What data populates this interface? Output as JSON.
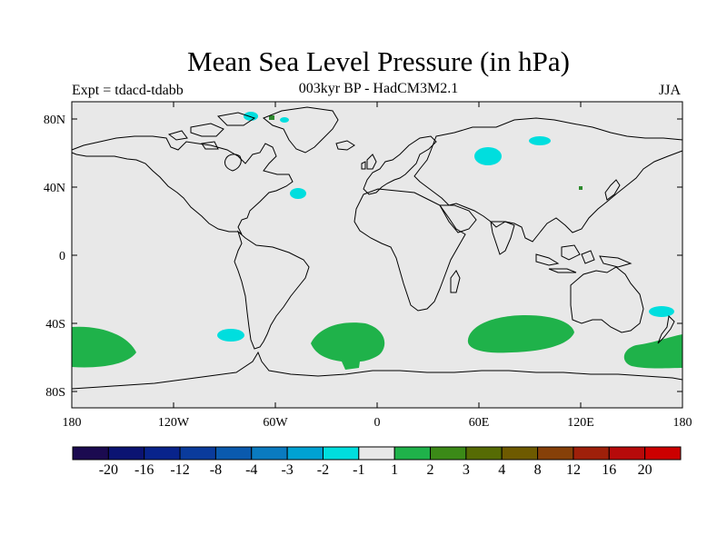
{
  "header": {
    "title": "Mean Sea Level Pressure (in hPa)",
    "subtitle": "003kyr BP - HadCM3M2.1",
    "left_label": "Expt = tdacd-tdabb",
    "right_label": "JJA"
  },
  "map": {
    "lat_ticks": [
      "80N",
      "40N",
      "0",
      "40S",
      "80S"
    ],
    "lon_ticks": [
      "180",
      "120W",
      "60W",
      "0",
      "60E",
      "120E",
      "180"
    ],
    "background_color": "#e8e8e8",
    "coast_color": "#000000"
  },
  "colorbar": {
    "labels": [
      "-20",
      "-16",
      "-12",
      "-8",
      "-4",
      "-3",
      "-2",
      "-1",
      "1",
      "2",
      "3",
      "4",
      "8",
      "12",
      "16",
      "20"
    ],
    "colors": [
      "#1b0a50",
      "#0b1372",
      "#08238b",
      "#0a3b9c",
      "#0a5aae",
      "#0a7bc0",
      "#00a2d3",
      "#00dede",
      "#e8e8e8",
      "#1fb24a",
      "#3b8a17",
      "#566b04",
      "#6e5a00",
      "#864008",
      "#9f200a",
      "#b70a0a",
      "#cc0000"
    ]
  },
  "chart_data": {
    "type": "map",
    "variable": "Mean Sea Level Pressure anomaly (in hPa)",
    "season": "JJA",
    "lon_range": [
      -180,
      180
    ],
    "lat_range": [
      -90,
      90
    ],
    "anomaly_regions": [
      {
        "sign": "positive",
        "range": "1 to 2",
        "region": "South Pacific (SW of New Zealand)",
        "lon": -155,
        "lat": -52
      },
      {
        "sign": "positive",
        "range": "1 to 2",
        "region": "South Atlantic",
        "lon": -25,
        "lat": -47
      },
      {
        "sign": "positive",
        "range": "1 to 2",
        "region": "Southern Indian Ocean",
        "lon": 75,
        "lat": -47
      },
      {
        "sign": "positive",
        "range": "1 to 2",
        "region": "Southern Ocean south of Australia / New Zealand",
        "lon": 160,
        "lat": -55
      },
      {
        "sign": "negative",
        "range": "-2 to -1",
        "region": "Southeast Pacific",
        "lon": -83,
        "lat": -47
      },
      {
        "sign": "negative",
        "range": "-2 to -1",
        "region": "Tasman Sea / north of New Zealand",
        "lon": 163,
        "lat": -35
      },
      {
        "sign": "negative",
        "range": "-2 to -1",
        "region": "Western Siberia",
        "lon": 60,
        "lat": 61
      },
      {
        "sign": "negative",
        "range": "-2 to -1",
        "region": "North-central Siberia",
        "lon": 90,
        "lat": 71
      },
      {
        "sign": "negative",
        "range": "-2 to -1",
        "region": "North Atlantic east of Newfoundland",
        "lon": -47,
        "lat": 36
      },
      {
        "sign": "negative",
        "range": "-2 to -1",
        "region": "Canadian Arctic",
        "lon": -70,
        "lat": 80
      }
    ]
  }
}
